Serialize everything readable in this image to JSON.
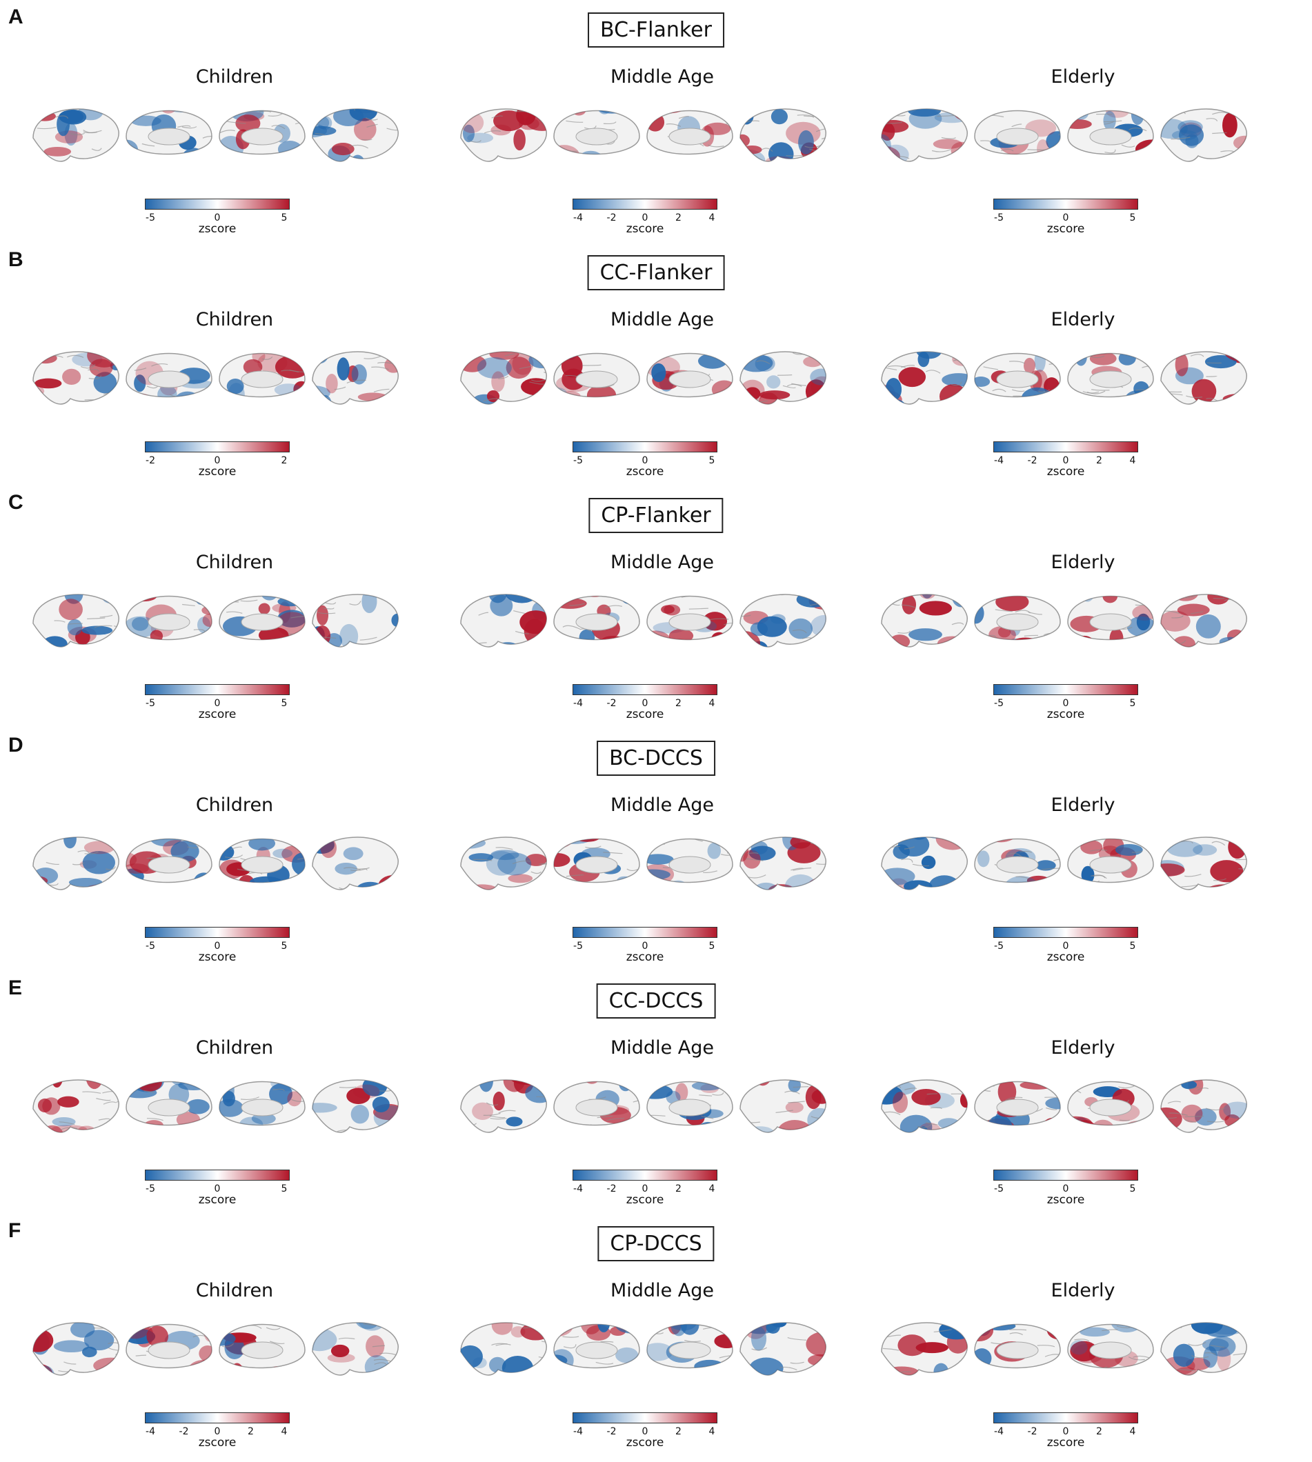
{
  "colors": {
    "neg": "#2166ac",
    "pos": "#b2182b",
    "neutral": "#f2f2f2"
  },
  "colorbar": {
    "label": "zscore"
  },
  "panels": [
    {
      "letter": "A",
      "title": "BC-Flanker",
      "groups": [
        {
          "name": "Children",
          "ticks": [
            "-5",
            "0",
            "5"
          ]
        },
        {
          "name": "Middle Age",
          "ticks": [
            "-4",
            "-2",
            "0",
            "2",
            "4"
          ]
        },
        {
          "name": "Elderly",
          "ticks": [
            "-5",
            "0",
            "5"
          ]
        }
      ]
    },
    {
      "letter": "B",
      "title": "CC-Flanker",
      "groups": [
        {
          "name": "Children",
          "ticks": [
            "-2",
            "0",
            "2"
          ]
        },
        {
          "name": "Middle Age",
          "ticks": [
            "-5",
            "0",
            "5"
          ]
        },
        {
          "name": "Elderly",
          "ticks": [
            "-4",
            "-2",
            "0",
            "2",
            "4"
          ]
        }
      ]
    },
    {
      "letter": "C",
      "title": "CP-Flanker",
      "groups": [
        {
          "name": "Children",
          "ticks": [
            "-5",
            "0",
            "5"
          ]
        },
        {
          "name": "Middle Age",
          "ticks": [
            "-4",
            "-2",
            "0",
            "2",
            "4"
          ]
        },
        {
          "name": "Elderly",
          "ticks": [
            "-5",
            "0",
            "5"
          ]
        }
      ]
    },
    {
      "letter": "D",
      "title": "BC-DCCS",
      "groups": [
        {
          "name": "Children",
          "ticks": [
            "-5",
            "0",
            "5"
          ]
        },
        {
          "name": "Middle Age",
          "ticks": [
            "-5",
            "0",
            "5"
          ]
        },
        {
          "name": "Elderly",
          "ticks": [
            "-5",
            "0",
            "5"
          ]
        }
      ]
    },
    {
      "letter": "E",
      "title": "CC-DCCS",
      "groups": [
        {
          "name": "Children",
          "ticks": [
            "-5",
            "0",
            "5"
          ]
        },
        {
          "name": "Middle Age",
          "ticks": [
            "-4",
            "-2",
            "0",
            "2",
            "4"
          ]
        },
        {
          "name": "Elderly",
          "ticks": [
            "-5",
            "0",
            "5"
          ]
        }
      ]
    },
    {
      "letter": "F",
      "title": "CP-DCCS",
      "groups": [
        {
          "name": "Children",
          "ticks": [
            "-4",
            "-2",
            "0",
            "2",
            "4"
          ]
        },
        {
          "name": "Middle Age",
          "ticks": [
            "-4",
            "-2",
            "0",
            "2",
            "4"
          ]
        },
        {
          "name": "Elderly",
          "ticks": [
            "-4",
            "-2",
            "0",
            "2",
            "4"
          ]
        }
      ]
    }
  ]
}
